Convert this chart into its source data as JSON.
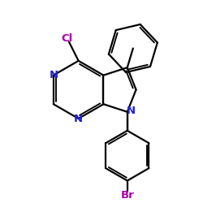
{
  "bg_color": "#ffffff",
  "bond_color": "#000000",
  "N_color": "#2222cc",
  "Cl_color": "#aa00aa",
  "Br_color": "#aa00aa",
  "bond_width": 1.6,
  "figsize": [
    2.5,
    2.5
  ],
  "dpi": 100,
  "xlim": [
    0,
    10
  ],
  "ylim": [
    0,
    10
  ]
}
